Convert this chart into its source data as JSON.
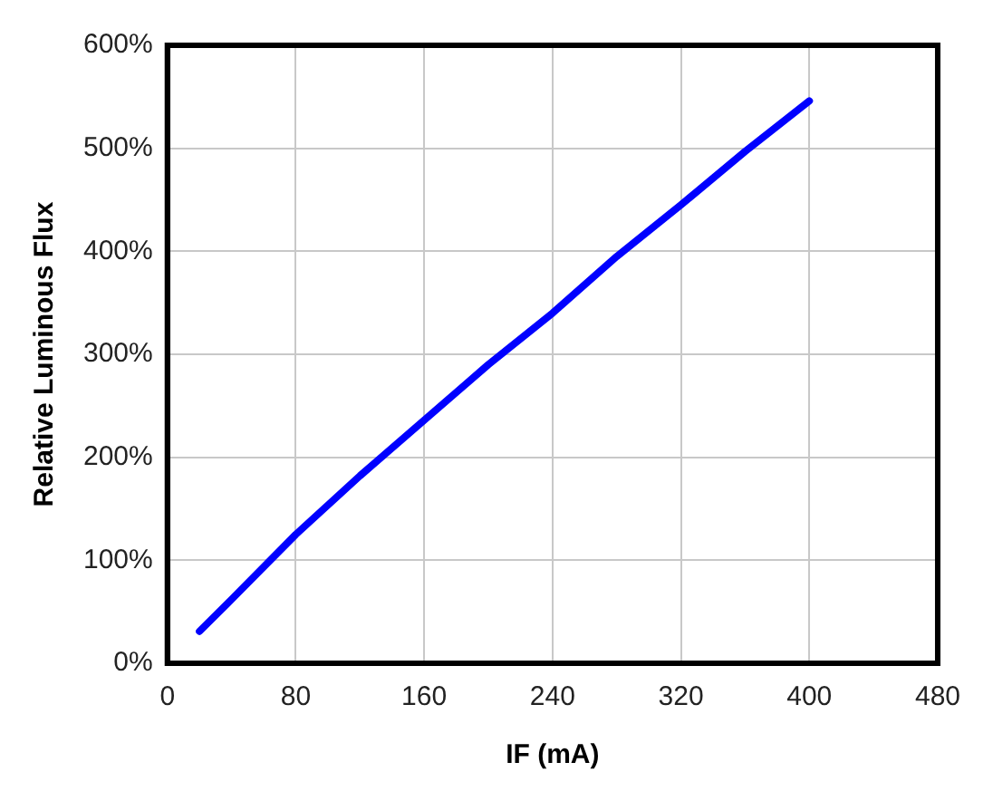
{
  "chart_data": {
    "type": "line",
    "xlabel": "IF (mA)",
    "ylabel": "Relative Luminous Flux",
    "x": [
      20,
      40,
      80,
      120,
      160,
      200,
      240,
      280,
      320,
      360,
      400
    ],
    "series": [
      {
        "color": "#0000ff",
        "values": [
          31,
          62,
          125,
          182,
          236,
          290,
          340,
          395,
          445,
          497,
          546
        ]
      }
    ],
    "xlim": [
      0,
      480
    ],
    "xticks": [
      0,
      80,
      160,
      240,
      320,
      400,
      480
    ],
    "ylim": [
      0,
      600
    ],
    "yticks": [
      {
        "value": 0,
        "label": "0%"
      },
      {
        "value": 100,
        "label": "100%"
      },
      {
        "value": 200,
        "label": "200%"
      },
      {
        "value": 300,
        "label": "300%"
      },
      {
        "value": 400,
        "label": "400%"
      },
      {
        "value": 500,
        "label": "500%"
      },
      {
        "value": 600,
        "label": "600%"
      }
    ],
    "grid": true,
    "legend": false,
    "marker": "none",
    "line_style": "solid"
  }
}
